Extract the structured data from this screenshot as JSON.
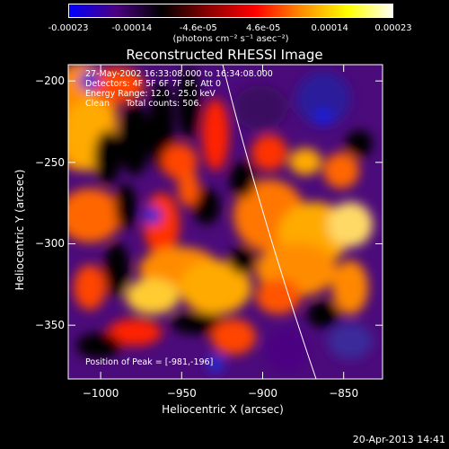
{
  "chart_data": {
    "type": "heatmap",
    "title": "Reconstructed RHESSI Image",
    "xlabel": "Heliocentric X (arcsec)",
    "ylabel": "Heliocentric Y (arcsec)",
    "xlim": [
      -1020,
      -826
    ],
    "ylim": [
      -383,
      -190
    ],
    "x_ticks": [
      -1000,
      -950,
      -900,
      -850
    ],
    "y_ticks": [
      -200,
      -250,
      -300,
      -350
    ],
    "colorbar": {
      "range": [
        -0.00023,
        0.00023
      ],
      "tick_values": [
        -0.00023,
        -0.00014,
        -4.6e-05,
        4.6e-05,
        0.00014,
        0.00023
      ],
      "tick_labels": [
        "-0.00023",
        "-0.00014",
        "-4.6e-05",
        "4.6e-05",
        "0.00014",
        "0.00023"
      ],
      "units": "(photons cm⁻² s⁻¹ asec⁻²)",
      "colors": [
        "#0000ff",
        "#4b0082",
        "#000000",
        "#8b0000",
        "#ff0000",
        "#ff8c00",
        "#ffff00",
        "#ffffff"
      ]
    },
    "annotations": {
      "time": "27-May-2002 16:33:08.000 to 16:34:08.000",
      "detectors": "Detectors: 4F 5F 6F 7F 8F, Att 0",
      "energy": "Energy Range: 12.0 - 25.0 keV",
      "clean": "Clean      Total counts: 506.",
      "peak": "Position of Peak = [-981,-196]"
    },
    "peak_position": [
      -981,
      -196
    ]
  },
  "timestamp": "20-Apr-2013 14:41"
}
